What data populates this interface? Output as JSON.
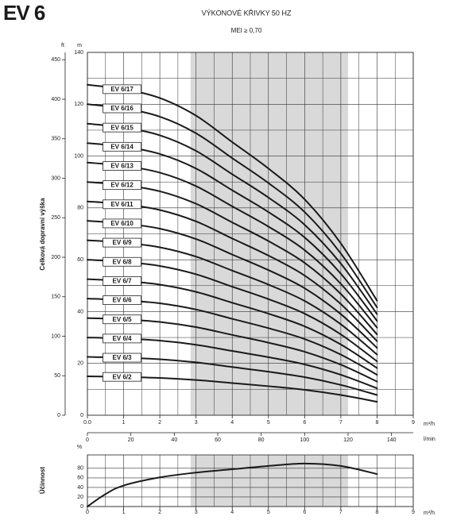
{
  "header": {
    "title": "EV 6"
  },
  "chart_data": [
    {
      "type": "line",
      "title": "VÝKONOVÉ KŘIVKY 50 HZ",
      "subtitle": "MEI ≥ 0,70",
      "ylabel": "Celková dopravní výška",
      "y_unit": "m",
      "y2_unit": "ft",
      "x_unit": "m³/h",
      "x2_unit": "l/min",
      "x": [
        0,
        1,
        2,
        3,
        4,
        5,
        6,
        7,
        8
      ],
      "series": [
        {
          "name": "EV 6/2",
          "color": "#1a1a1a",
          "values": [
            15,
            14.8,
            14.4,
            13.6,
            12.4,
            11.2,
            9.8,
            7.8,
            5.2
          ]
        },
        {
          "name": "EV 6/3",
          "color": "#1a1a1a",
          "values": [
            22.5,
            22.2,
            21.6,
            20.4,
            18.6,
            16.8,
            14.7,
            11.7,
            7.8
          ]
        },
        {
          "name": "EV 6/4",
          "color": "#1a1a1a",
          "values": [
            30,
            29.6,
            28.8,
            27.2,
            24.8,
            22.4,
            19.6,
            15.6,
            10.4
          ]
        },
        {
          "name": "EV 6/5",
          "color": "#1a1a1a",
          "values": [
            37.5,
            37,
            36,
            34,
            31,
            28,
            24.5,
            19.5,
            13
          ]
        },
        {
          "name": "EV 6/6",
          "color": "#1a1a1a",
          "values": [
            45,
            44.4,
            43.2,
            40.8,
            37.2,
            33.6,
            29.4,
            23.4,
            15.6
          ]
        },
        {
          "name": "EV 6/7",
          "color": "#1a1a1a",
          "values": [
            52.5,
            51.8,
            50.4,
            47.6,
            43.4,
            39.2,
            34.3,
            27.3,
            18.2
          ]
        },
        {
          "name": "EV 6/8",
          "color": "#1a1a1a",
          "values": [
            60,
            59.2,
            57.6,
            54.4,
            49.6,
            44.8,
            39.2,
            31.2,
            20.8
          ]
        },
        {
          "name": "EV 6/9",
          "color": "#1a1a1a",
          "values": [
            67.5,
            66.6,
            64.8,
            61.2,
            55.8,
            50.4,
            44.1,
            35.1,
            23.4
          ]
        },
        {
          "name": "EV 6/10",
          "color": "#1a1a1a",
          "values": [
            75,
            74,
            72,
            68,
            62,
            56,
            49,
            39,
            26
          ]
        },
        {
          "name": "EV 6/11",
          "color": "#1a1a1a",
          "values": [
            82.5,
            81.4,
            79.2,
            74.8,
            68.2,
            61.6,
            53.9,
            42.9,
            28.6
          ]
        },
        {
          "name": "EV 6/12",
          "color": "#1a1a1a",
          "values": [
            90,
            88.8,
            86.4,
            81.6,
            74.4,
            67.2,
            58.8,
            46.8,
            31.2
          ]
        },
        {
          "name": "EV 6/13",
          "color": "#1a1a1a",
          "values": [
            97.5,
            96.2,
            93.6,
            88.4,
            80.6,
            72.8,
            63.7,
            50.7,
            33.8
          ]
        },
        {
          "name": "EV 6/14",
          "color": "#1a1a1a",
          "values": [
            105,
            103.6,
            100.8,
            95.2,
            86.8,
            78.4,
            68.6,
            54.6,
            36.4
          ]
        },
        {
          "name": "EV 6/15",
          "color": "#1a1a1a",
          "values": [
            112.5,
            111,
            108,
            102,
            93,
            84,
            73.5,
            58.5,
            39
          ]
        },
        {
          "name": "EV 6/16",
          "color": "#1a1a1a",
          "values": [
            120,
            118.4,
            115.2,
            108.8,
            99.2,
            89.6,
            78.4,
            62.4,
            41.6
          ]
        },
        {
          "name": "EV 6/17",
          "color": "#1a1a1a",
          "values": [
            127.5,
            125.8,
            122.4,
            115.6,
            105.4,
            95.2,
            83.3,
            66.3,
            44.2
          ]
        }
      ],
      "xlim": [
        0,
        9
      ],
      "xticks": [
        {
          "value": 0,
          "label": "0.0"
        },
        1,
        2,
        3,
        4,
        5,
        6,
        7,
        8,
        9
      ],
      "xminorticks": [
        0.5,
        1.5,
        2.5,
        3.5,
        4.5,
        5.5,
        6.5,
        7.5,
        8.5
      ],
      "ylim": [
        0,
        140
      ],
      "yticks": [
        0,
        20,
        40,
        60,
        80,
        100,
        120,
        140
      ],
      "yminorticks": [
        10,
        30,
        50,
        70,
        90,
        110,
        130
      ],
      "y2lim": [
        0,
        459.3
      ],
      "y2ticks": [
        0,
        50,
        100,
        150,
        200,
        250,
        300,
        350,
        400,
        450
      ],
      "x2lim": [
        0,
        150
      ],
      "x2ticks": [
        0,
        20,
        40,
        60,
        80,
        100,
        120,
        140
      ],
      "highlight_range": [
        2.85,
        7.2
      ],
      "highlight_color": "#d9d9d9",
      "grid": true
    },
    {
      "type": "line",
      "ylabel": "Účinnost",
      "y_unit": "%",
      "x_unit": "m³/h",
      "x": [
        0,
        0.5,
        1,
        2,
        3,
        4,
        5,
        6,
        7,
        8
      ],
      "values": [
        0,
        26,
        44,
        61,
        71,
        78,
        85,
        90,
        85,
        68
      ],
      "color": "#1a1a1a",
      "xlim": [
        0,
        9
      ],
      "xticks": [
        0,
        1,
        2,
        3,
        4,
        5,
        6,
        7,
        8,
        9
      ],
      "xminorticks": [
        0.5,
        1.5,
        2.5,
        3.5,
        4.5,
        5.5,
        6.5,
        7.5,
        8.5
      ],
      "ylim": [
        0,
        108
      ],
      "yticks": [
        0,
        20,
        40,
        60,
        80
      ],
      "highlight_range": [
        2.85,
        7.2
      ],
      "highlight_color": "#d9d9d9",
      "grid": true
    }
  ]
}
